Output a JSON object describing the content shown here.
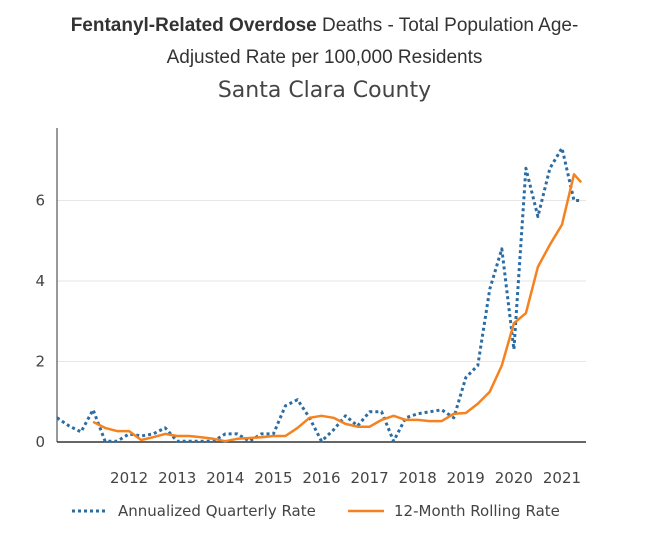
{
  "chart_data": {
    "type": "line",
    "title_bold": "Fentanyl-Related Overdose",
    "title_rest_line1": " Deaths - Total Population Age-",
    "title_line2": "Adjusted Rate per 100,000 Residents",
    "subtitle": "Santa Clara County",
    "xlabel": "",
    "ylabel": "",
    "ylim": [
      0,
      7.8
    ],
    "xlim": [
      2011.0,
      2022.0
    ],
    "grid": true,
    "legend_position": "bottom",
    "y_ticks": [
      {
        "value": 0,
        "label": "0"
      },
      {
        "value": 2,
        "label": "2"
      },
      {
        "value": 4,
        "label": "4"
      },
      {
        "value": 6,
        "label": "6"
      }
    ],
    "x_ticks": [
      {
        "value": 2012,
        "label": "2012"
      },
      {
        "value": 2013,
        "label": "2013"
      },
      {
        "value": 2014,
        "label": "2014"
      },
      {
        "value": 2015,
        "label": "2015"
      },
      {
        "value": 2016,
        "label": "2016"
      },
      {
        "value": 2017,
        "label": "2017"
      },
      {
        "value": 2018,
        "label": "2018"
      },
      {
        "value": 2019,
        "label": "2019"
      },
      {
        "value": 2020,
        "label": "2020"
      },
      {
        "value": 2021,
        "label": "2021"
      }
    ],
    "series": [
      {
        "name": "Annualized Quarterly Rate",
        "color": "#2b6ca3",
        "style": "dotted",
        "x": [
          2011.0,
          2011.25,
          2011.5,
          2011.75,
          2012.0,
          2012.25,
          2012.5,
          2012.75,
          2013.0,
          2013.25,
          2013.5,
          2013.75,
          2014.0,
          2014.25,
          2014.5,
          2014.75,
          2015.0,
          2015.25,
          2015.5,
          2015.75,
          2016.0,
          2016.25,
          2016.5,
          2016.75,
          2017.0,
          2017.25,
          2017.5,
          2017.75,
          2018.0,
          2018.25,
          2018.5,
          2018.75,
          2019.0,
          2019.25,
          2019.5,
          2019.75,
          2020.0,
          2020.25,
          2020.5,
          2020.75,
          2021.0,
          2021.25,
          2021.5,
          2021.75,
          2021.9
        ],
        "values": [
          0.6,
          0.4,
          0.25,
          0.8,
          0.02,
          0.02,
          0.2,
          0.15,
          0.2,
          0.35,
          0.02,
          0.02,
          0.02,
          0.02,
          0.2,
          0.2,
          0.02,
          0.2,
          0.2,
          0.9,
          1.05,
          0.6,
          0.02,
          0.3,
          0.65,
          0.4,
          0.75,
          0.75,
          0.02,
          0.6,
          0.7,
          0.75,
          0.8,
          0.6,
          1.6,
          1.9,
          3.8,
          4.8,
          2.3,
          6.8,
          5.6,
          6.8,
          7.3,
          6.0,
          6.0
        ]
      },
      {
        "name": "12-Month Rolling Rate",
        "color": "#f5821f",
        "style": "solid",
        "x": [
          2011.75,
          2012.0,
          2012.25,
          2012.5,
          2012.75,
          2013.0,
          2013.25,
          2013.5,
          2013.75,
          2014.0,
          2014.25,
          2014.5,
          2014.75,
          2015.0,
          2015.25,
          2015.5,
          2015.75,
          2016.0,
          2016.25,
          2016.5,
          2016.75,
          2017.0,
          2017.25,
          2017.5,
          2017.75,
          2018.0,
          2018.25,
          2018.5,
          2018.75,
          2019.0,
          2019.25,
          2019.5,
          2019.75,
          2020.0,
          2020.25,
          2020.5,
          2020.75,
          2021.0,
          2021.25,
          2021.5,
          2021.75,
          2021.9
        ],
        "values": [
          0.5,
          0.35,
          0.27,
          0.27,
          0.05,
          0.12,
          0.2,
          0.15,
          0.15,
          0.12,
          0.08,
          0.02,
          0.08,
          0.1,
          0.12,
          0.15,
          0.15,
          0.35,
          0.6,
          0.65,
          0.6,
          0.45,
          0.38,
          0.38,
          0.55,
          0.65,
          0.55,
          0.55,
          0.52,
          0.52,
          0.7,
          0.72,
          0.95,
          1.25,
          1.9,
          2.95,
          3.2,
          4.35,
          4.9,
          5.4,
          6.65,
          6.45
        ]
      }
    ]
  }
}
